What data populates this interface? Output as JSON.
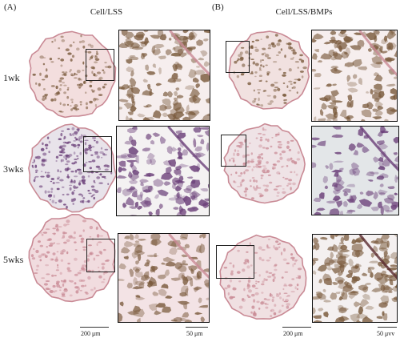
{
  "panels": {
    "a": {
      "letter": "(A)",
      "title": "Cell/LSS"
    },
    "b": {
      "letter": "(B)",
      "title": "Cell/LSS/BMPs"
    }
  },
  "rows": [
    "1wk",
    "3wks",
    "5wks"
  ],
  "scale_bars": {
    "a_overview": "200 μm",
    "a_zoom": "50 μm",
    "b_overview": "200 μm",
    "b_zoom": "50 μvv"
  },
  "colors": {
    "stain_pink": "#c98a95",
    "stain_brown": "#7a5a3c",
    "stain_purple": "#6a3e78",
    "background": "#ffffff",
    "zoom_gray": "#e3e6e8"
  }
}
